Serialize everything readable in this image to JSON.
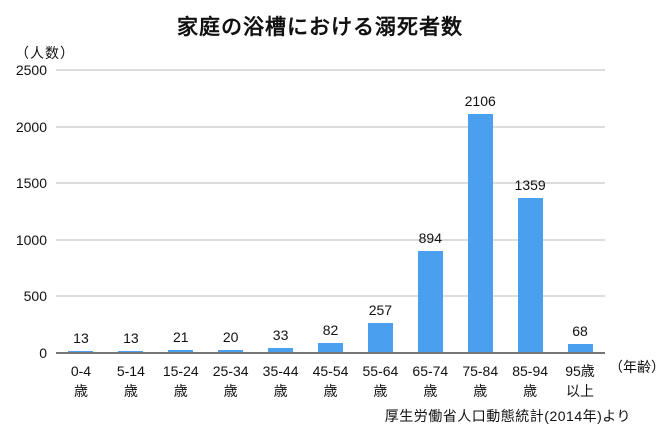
{
  "title": "家庭の浴槽における溺死者数",
  "y_unit_label": "（人数）",
  "x_unit_label": "（年齢）",
  "source": "厚生労働省人口動態統計(2014年)より",
  "colors": {
    "bar": "#4aa0ef",
    "grid": "#dcdcdc",
    "axis": "#757575",
    "text": "#111111",
    "background": "#ffffff"
  },
  "chart_data": {
    "type": "bar",
    "title": "家庭の浴槽における溺死者数",
    "xlabel": "年齢",
    "ylabel": "人数",
    "categories": [
      "0-4歳",
      "5-14歳",
      "15-24歳",
      "25-34歳",
      "35-44歳",
      "45-54歳",
      "55-64歳",
      "65-74歳",
      "75-84歳",
      "85-94歳",
      "95歳以上"
    ],
    "category_lines": [
      [
        "0-4",
        "歳"
      ],
      [
        "5-14",
        "歳"
      ],
      [
        "15-24",
        "歳"
      ],
      [
        "25-34",
        "歳"
      ],
      [
        "35-44",
        "歳"
      ],
      [
        "45-54",
        "歳"
      ],
      [
        "55-64",
        "歳"
      ],
      [
        "65-74",
        "歳"
      ],
      [
        "75-84",
        "歳"
      ],
      [
        "85-94",
        "歳"
      ],
      [
        "95歳",
        "以上"
      ]
    ],
    "values": [
      13,
      13,
      21,
      20,
      33,
      82,
      257,
      894,
      2106,
      1359,
      68
    ],
    "ylim": [
      0,
      2500
    ],
    "yticks": [
      0,
      500,
      1000,
      1500,
      2000,
      2500
    ],
    "grid": true,
    "legend_position": "none",
    "bar_color": "#4aa0ef",
    "source_annotation": "厚生労働省人口動態統計(2014年)より"
  }
}
